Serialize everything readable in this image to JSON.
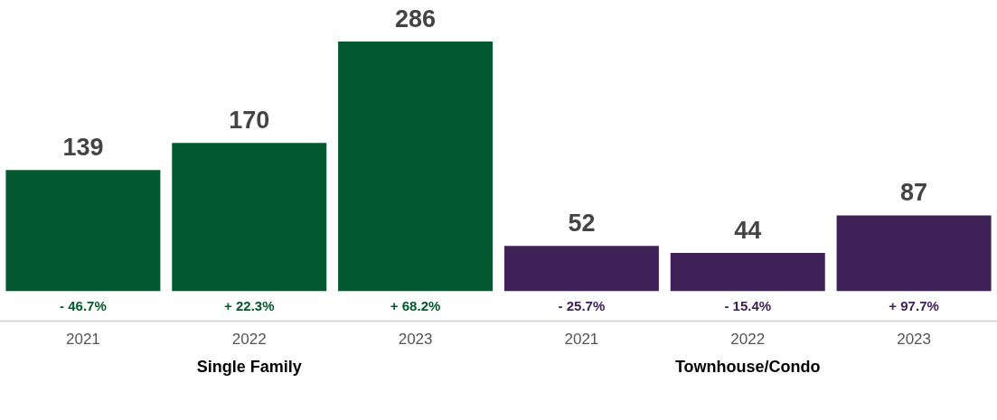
{
  "chart_data": {
    "type": "bar",
    "categories": [
      "2021",
      "2022",
      "2023",
      "2021",
      "2022",
      "2023"
    ],
    "series": [
      {
        "color": "#03592f",
        "values": [
          139,
          170,
          286,
          null,
          null,
          null
        ]
      },
      {
        "color": "#3d2157",
        "values": [
          null,
          null,
          null,
          52,
          44,
          87
        ]
      }
    ],
    "data_labels": true,
    "grid": false,
    "legend": false,
    "annotations": [
      "- 46.7%",
      "+ 22.3%",
      "+ 68.2%",
      "- 25.7%",
      "- 15.4%",
      "+ 97.7%",
      "Single Family",
      "Townhouse/Condo"
    ]
  }
}
